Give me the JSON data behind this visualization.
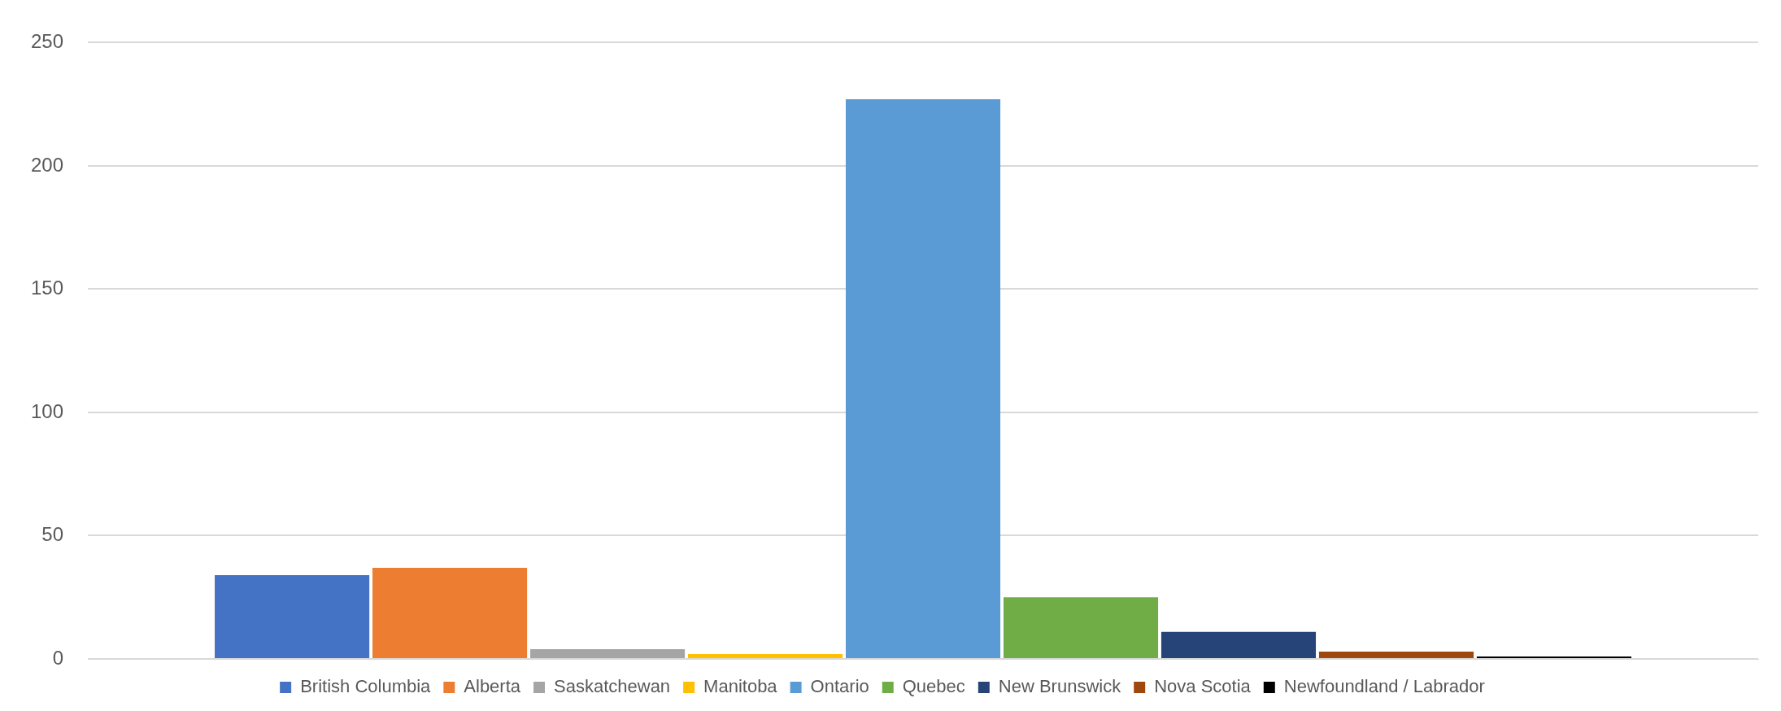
{
  "chart_data": {
    "type": "bar",
    "categories": [
      null
    ],
    "series": [
      {
        "name": "British Columbia",
        "color": "#4472c4",
        "values": [
          34
        ]
      },
      {
        "name": "Alberta",
        "color": "#ed7d31",
        "values": [
          37
        ]
      },
      {
        "name": "Saskatchewan",
        "color": "#a5a5a5",
        "values": [
          4
        ]
      },
      {
        "name": "Manitoba",
        "color": "#ffc000",
        "values": [
          2
        ]
      },
      {
        "name": "Ontario",
        "color": "#5b9bd5",
        "values": [
          227
        ]
      },
      {
        "name": "Quebec",
        "color": "#70ad47",
        "values": [
          25
        ]
      },
      {
        "name": "New Brunswick",
        "color": "#264478",
        "values": [
          11
        ]
      },
      {
        "name": "Nova Scotia",
        "color": "#9e480e",
        "values": [
          3
        ]
      },
      {
        "name": "Newfoundland / Labrador",
        "color": "#000000",
        "values": [
          1
        ]
      }
    ],
    "ylim": [
      0,
      250
    ],
    "yticks": [
      0,
      50,
      100,
      150,
      200,
      250
    ],
    "grid": "y",
    "legend": "bottom"
  }
}
